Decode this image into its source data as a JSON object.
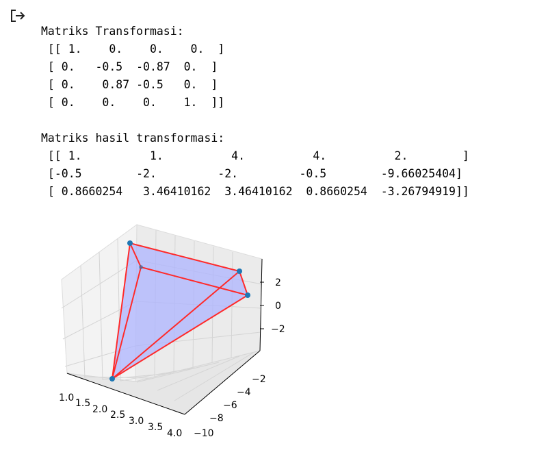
{
  "output_icon": "output-arrow-icon",
  "console": {
    "lines_1": [
      "Matriks Transformasi:",
      " [[ 1.    0.    0.    0.  ]",
      " [ 0.   -0.5  -0.87  0.  ]",
      " [ 0.    0.87 -0.5   0.  ]",
      " [ 0.    0.    0.    1.  ]]"
    ],
    "lines_2": [
      "Matriks hasil transformasi:",
      " [[ 1.          1.          4.          4.          2.        ]",
      " [-0.5        -2.         -2.         -0.5        -9.66025404]",
      " [ 0.8660254   3.46410162  3.46410162  0.8660254  -3.26794919]]"
    ]
  },
  "plot3d": {
    "x_ticks": [
      "1.0",
      "1.5",
      "2.0",
      "2.5",
      "3.0",
      "3.5",
      "4.0"
    ],
    "y_ticks": [
      "−2",
      "−4",
      "−6",
      "−8",
      "−10"
    ],
    "z_ticks": [
      "2",
      "0",
      "−2"
    ],
    "colors": {
      "edge": "#ff2a2a",
      "face": "#aeb4ff",
      "point": "#1f77b4",
      "pane": "#f2f2f2"
    },
    "points": [
      {
        "x": 1,
        "y": -0.5,
        "z": 0.8660254
      },
      {
        "x": 1,
        "y": -2,
        "z": 3.46410162
      },
      {
        "x": 4,
        "y": -2,
        "z": 3.46410162
      },
      {
        "x": 4,
        "y": -0.5,
        "z": 0.8660254
      },
      {
        "x": 2,
        "y": -9.66025404,
        "z": -3.26794919
      }
    ]
  }
}
